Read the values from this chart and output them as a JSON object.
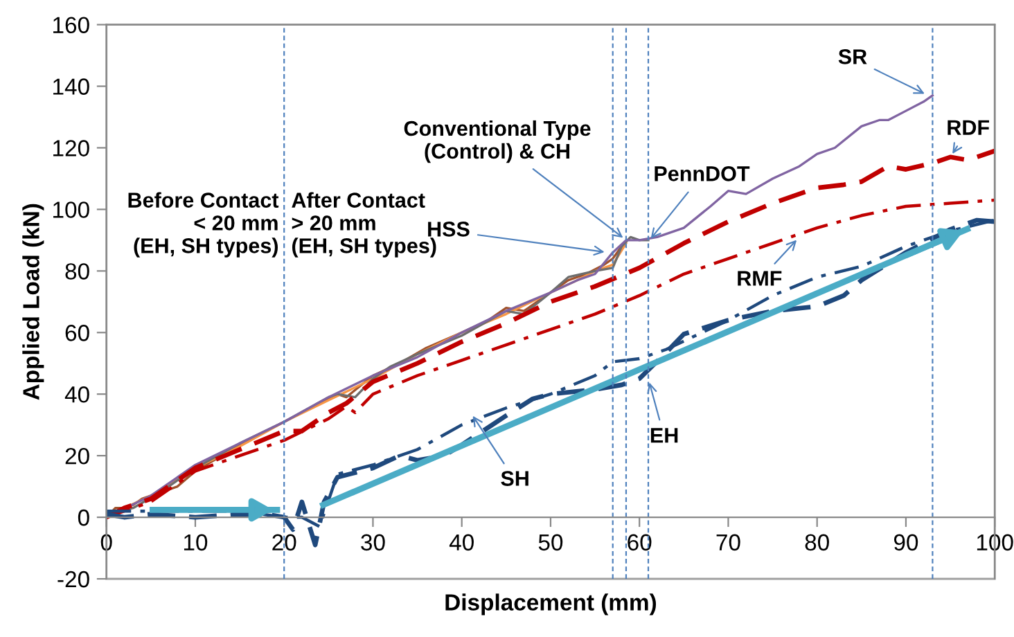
{
  "chart_data": {
    "type": "line",
    "xlabel": "Displacement (mm)",
    "ylabel": "Applied Load (kN)",
    "xlim": [
      0,
      100
    ],
    "ylim": [
      -20,
      160
    ],
    "xticks": [
      0,
      10,
      20,
      30,
      40,
      50,
      60,
      70,
      80,
      90,
      100
    ],
    "yticks": [
      -20,
      0,
      20,
      40,
      60,
      80,
      100,
      120,
      140,
      160
    ],
    "grid": false,
    "legend": false,
    "marker": "none",
    "series": [
      {
        "color": "#a0522d",
        "line_style": "solid",
        "x": [
          0,
          1,
          2,
          3,
          4,
          5,
          7,
          8,
          10,
          13,
          16,
          20,
          24,
          26,
          27,
          30,
          33,
          36,
          40,
          43,
          45,
          47,
          50,
          52,
          54,
          56,
          57,
          58
        ],
        "values": [
          0,
          3,
          3,
          4,
          6,
          7,
          9,
          10,
          15,
          20,
          25,
          31,
          37,
          40,
          39,
          46,
          50,
          55,
          60,
          64,
          68,
          67,
          73,
          77,
          79,
          82,
          84,
          88
        ]
      },
      {
        "color": "#f79646",
        "line_style": "solid",
        "x": [
          0,
          2,
          5,
          10,
          15,
          20,
          25,
          30,
          35,
          40,
          45,
          50,
          53,
          55,
          57,
          58.5
        ],
        "values": [
          0,
          3,
          7,
          16,
          23,
          31,
          38,
          45,
          53,
          60,
          66,
          73,
          77,
          80,
          82,
          89
        ]
      },
      {
        "color": "#6d6d6d",
        "line_style": "solid",
        "x": [
          0,
          3,
          6,
          10,
          15,
          20,
          25,
          26,
          28,
          30,
          32,
          35,
          40,
          45,
          47,
          50,
          52,
          55,
          57,
          58,
          59,
          60,
          61
        ],
        "values": [
          1,
          3,
          8,
          16,
          24,
          31,
          39,
          40,
          39,
          45,
          49,
          53,
          59,
          67,
          66,
          73,
          78,
          80,
          81,
          88,
          91,
          90,
          90
        ]
      },
      {
        "color": "#8064a2",
        "line_style": "solid",
        "x": [
          0,
          5,
          10,
          15,
          20,
          25,
          30,
          35,
          40,
          45,
          50,
          53,
          55,
          57,
          58.5,
          60,
          62,
          65,
          68,
          70,
          72,
          75,
          78,
          80,
          82,
          85,
          87,
          88,
          90,
          92,
          93
        ],
        "values": [
          0,
          7,
          17,
          24,
          31,
          39,
          46,
          52,
          60,
          67,
          73,
          77,
          79,
          86,
          90,
          90,
          91,
          94,
          101,
          106,
          105,
          110,
          114,
          118,
          120,
          127,
          129,
          129,
          132,
          135,
          137
        ]
      },
      {
        "color": "#c00000",
        "line_style": "dashed",
        "x": [
          0,
          2,
          5,
          10,
          15,
          20,
          22,
          25,
          27,
          30,
          35,
          40,
          45,
          50,
          55,
          60,
          65,
          70,
          75,
          80,
          83,
          85,
          88,
          90,
          93,
          95,
          97,
          100
        ],
        "values": [
          0,
          3,
          6,
          16,
          22,
          28,
          28,
          34,
          37,
          44,
          50,
          57,
          63,
          70,
          75,
          81,
          89,
          96,
          102,
          107,
          108,
          109,
          114,
          113,
          115,
          117,
          116,
          119
        ]
      },
      {
        "color": "#c00000",
        "line_style": "dashdot",
        "x": [
          0,
          5,
          10,
          15,
          20,
          25,
          27,
          28,
          30,
          35,
          40,
          45,
          50,
          55,
          60,
          65,
          70,
          75,
          80,
          85,
          90,
          95,
          100
        ],
        "values": [
          0,
          5,
          15,
          20,
          25,
          32,
          36,
          34,
          40,
          46,
          51,
          56,
          61,
          66,
          72,
          79,
          84,
          89,
          94,
          98,
          101,
          102,
          103
        ]
      },
      {
        "color": "#1f497d",
        "line_style": "dashed",
        "x": [
          0,
          2,
          5,
          10,
          15,
          18,
          20,
          21,
          22,
          23.5,
          24.5,
          26,
          30,
          33,
          35,
          38,
          40,
          45,
          48,
          50,
          55,
          58,
          60,
          63,
          65,
          70,
          75,
          80,
          83,
          85,
          90,
          95,
          98,
          100
        ],
        "values": [
          1,
          0,
          1,
          0,
          1,
          1,
          0,
          -4,
          5,
          -9,
          5,
          13,
          16,
          20,
          18.5,
          20,
          23.5,
          33,
          38.5,
          40,
          41.5,
          43,
          45,
          53.5,
          59.5,
          64,
          67,
          68.5,
          72,
          77,
          86,
          93.5,
          96.5,
          96
        ]
      },
      {
        "color": "#1f497d",
        "line_style": "dashdot",
        "x": [
          0,
          5,
          10,
          15,
          20,
          22,
          24,
          26,
          30,
          35,
          40,
          45,
          50,
          55,
          57,
          60,
          63,
          70,
          75,
          80,
          85,
          90,
          95,
          100
        ],
        "values": [
          2,
          2,
          2,
          2,
          0,
          0,
          -3,
          14,
          17,
          22,
          30,
          35.5,
          40,
          46,
          50.5,
          51.5,
          54.5,
          64,
          72,
          78,
          81.5,
          88,
          93,
          96.5
        ]
      },
      {
        "color": "#4bacc6",
        "line_style": "solid",
        "x": [
          5.2,
          19.2
        ],
        "values": [
          2.4,
          2.4
        ]
      },
      {
        "color": "#4bacc6",
        "line_style": "solid",
        "x": [
          24.4,
          96.9
        ],
        "values": [
          4,
          93.6
        ]
      }
    ],
    "ref_lines": [
      {
        "axis": "x",
        "value": 20,
        "color": "#4f81bd",
        "line_style": "dashed"
      },
      {
        "axis": "x",
        "value": 57,
        "color": "#4f81bd",
        "line_style": "dashed"
      },
      {
        "axis": "x",
        "value": 58.5,
        "color": "#4f81bd",
        "line_style": "dashed"
      },
      {
        "axis": "x",
        "value": 61,
        "color": "#4f81bd",
        "line_style": "dashed"
      },
      {
        "axis": "x",
        "value": 93,
        "color": "#4f81bd",
        "line_style": "dashed"
      }
    ],
    "annotations": [
      "Before Contact\n< 20 mm\n(EH, SH types)",
      "After Contact\n> 20 mm\n(EH, SH types)",
      {
        "text": "Conventional Type\n(Control) & CH",
        "x": 58.5,
        "y": 90
      },
      {
        "text": "HSS",
        "x": 56.5,
        "y": 86
      },
      {
        "text": "PennDOT",
        "x": 61,
        "y": 89.5
      },
      {
        "text": "SR",
        "x": 92.5,
        "y": 137
      },
      {
        "text": "RDF",
        "x": 95,
        "y": 117
      },
      {
        "text": "RMF",
        "x": 78,
        "y": 91
      },
      {
        "text": "EH",
        "x": 61,
        "y": 45
      },
      {
        "text": "SH",
        "x": 41,
        "y": 34
      }
    ]
  }
}
